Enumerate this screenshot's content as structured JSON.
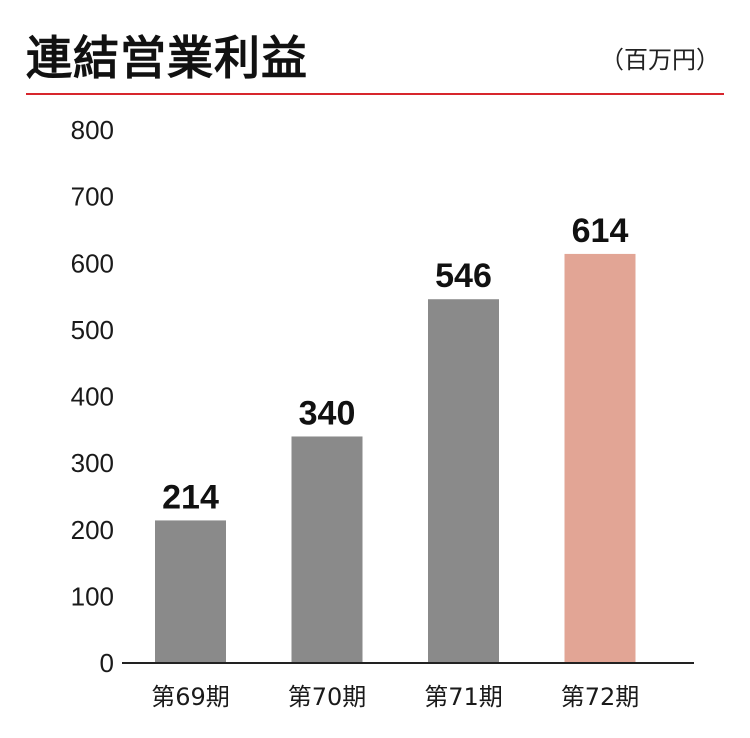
{
  "header": {
    "title": "連結営業利益",
    "unit": "（百万円）"
  },
  "colors": {
    "accent_rule": "#d7262d",
    "bar_default": "#8a8a8a",
    "bar_highlight": "#e2a595",
    "axis": "#222222"
  },
  "chart_data": {
    "type": "bar",
    "title": "連結営業利益",
    "unit": "（百万円）",
    "categories": [
      "第69期",
      "第70期",
      "第71期",
      "第72期"
    ],
    "values": [
      214,
      340,
      546,
      614
    ],
    "data_labels": [
      "214",
      "340",
      "546",
      "614"
    ],
    "highlight_index": 3,
    "ylim": [
      0,
      800
    ],
    "yticks": [
      0,
      100,
      200,
      300,
      400,
      500,
      600,
      700,
      800
    ],
    "grid": false,
    "legend": "none"
  }
}
